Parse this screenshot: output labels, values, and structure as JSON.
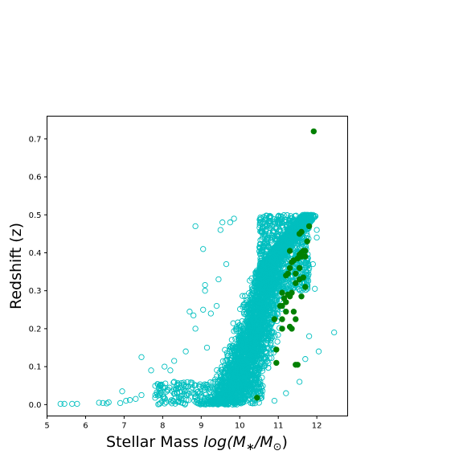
{
  "chart_data": {
    "type": "scatter",
    "xlabel_prefix": "Stellar Mass ",
    "xlabel_math": "log(M",
    "xlabel_sub1": "∗",
    "xlabel_mid": "/M",
    "xlabel_sub2": "⊙",
    "xlabel_suffix": ")",
    "ylabel": "Redshift (z)",
    "xlim": [
      5.0,
      12.8
    ],
    "ylim": [
      -0.03,
      0.76
    ],
    "xticks": [
      5,
      6,
      7,
      8,
      9,
      10,
      11,
      12
    ],
    "yticks": [
      0.0,
      0.1,
      0.2,
      0.3,
      0.4,
      0.5,
      0.6,
      0.7
    ],
    "yticklabels": [
      "0.0",
      "0.1",
      "0.2",
      "0.3",
      "0.4",
      "0.5",
      "0.6",
      "0.7"
    ],
    "grid": false,
    "series": [
      {
        "marker": "open-circle",
        "color": "#00bfbf",
        "points": [
          [
            5.35,
            0.002
          ],
          [
            5.45,
            0.002
          ],
          [
            5.65,
            0.002
          ],
          [
            5.78,
            0.002
          ],
          [
            6.35,
            0.005
          ],
          [
            6.45,
            0.004
          ],
          [
            6.55,
            0.003
          ],
          [
            6.6,
            0.006
          ],
          [
            6.9,
            0.004
          ],
          [
            6.95,
            0.035
          ],
          [
            7.05,
            0.01
          ],
          [
            7.15,
            0.012
          ],
          [
            7.3,
            0.015
          ],
          [
            7.45,
            0.025
          ],
          [
            7.45,
            0.125
          ],
          [
            7.7,
            0.09
          ],
          [
            7.95,
            0.05
          ],
          [
            8.05,
            0.1
          ],
          [
            8.2,
            0.09
          ],
          [
            8.3,
            0.115
          ],
          [
            8.6,
            0.14
          ],
          [
            8.7,
            0.245
          ],
          [
            8.8,
            0.235
          ],
          [
            8.85,
            0.47
          ],
          [
            8.85,
            0.2
          ],
          [
            9.05,
            0.25
          ],
          [
            9.05,
            0.41
          ],
          [
            9.1,
            0.3
          ],
          [
            9.1,
            0.315
          ],
          [
            9.15,
            0.15
          ],
          [
            9.25,
            0.24
          ],
          [
            9.4,
            0.26
          ],
          [
            9.45,
            0.33
          ],
          [
            9.5,
            0.46
          ],
          [
            9.55,
            0.48
          ],
          [
            9.65,
            0.37
          ],
          [
            9.75,
            0.48
          ],
          [
            9.85,
            0.49
          ],
          [
            12.45,
            0.19
          ],
          [
            12.05,
            0.14
          ],
          [
            11.95,
            0.305
          ],
          [
            12.0,
            0.44
          ],
          [
            12.0,
            0.46
          ],
          [
            11.9,
            0.37
          ],
          [
            11.85,
            0.5
          ],
          [
            11.8,
            0.18
          ],
          [
            11.7,
            0.12
          ],
          [
            11.55,
            0.06
          ],
          [
            11.2,
            0.03
          ],
          [
            10.9,
            0.01
          ],
          [
            10.5,
            0.005
          ],
          [
            9.9,
            0.01
          ]
        ],
        "dense_band_note": ""
      },
      {
        "marker": "filled-circle",
        "color": "#008000",
        "points": [
          [
            11.92,
            0.72
          ],
          [
            10.45,
            0.018
          ],
          [
            11.45,
            0.105
          ],
          [
            11.5,
            0.105
          ],
          [
            10.95,
            0.11
          ],
          [
            10.95,
            0.145
          ],
          [
            11.1,
            0.2
          ],
          [
            11.3,
            0.205
          ],
          [
            11.35,
            0.2
          ],
          [
            10.9,
            0.225
          ],
          [
            11.1,
            0.225
          ],
          [
            11.45,
            0.225
          ],
          [
            11.2,
            0.245
          ],
          [
            11.4,
            0.245
          ],
          [
            11.05,
            0.26
          ],
          [
            11.1,
            0.26
          ],
          [
            11.2,
            0.27
          ],
          [
            11.15,
            0.28
          ],
          [
            11.3,
            0.285
          ],
          [
            11.25,
            0.29
          ],
          [
            11.6,
            0.285
          ],
          [
            11.1,
            0.295
          ],
          [
            11.35,
            0.295
          ],
          [
            11.7,
            0.31
          ],
          [
            11.45,
            0.32
          ],
          [
            11.55,
            0.33
          ],
          [
            11.65,
            0.335
          ],
          [
            11.2,
            0.34
          ],
          [
            11.25,
            0.345
          ],
          [
            11.45,
            0.345
          ],
          [
            11.3,
            0.36
          ],
          [
            11.55,
            0.36
          ],
          [
            11.35,
            0.375
          ],
          [
            11.4,
            0.38
          ],
          [
            11.5,
            0.385
          ],
          [
            11.6,
            0.39
          ],
          [
            11.7,
            0.39
          ],
          [
            11.55,
            0.395
          ],
          [
            11.6,
            0.4
          ],
          [
            11.65,
            0.405
          ],
          [
            11.3,
            0.405
          ],
          [
            11.7,
            0.405
          ],
          [
            11.75,
            0.43
          ],
          [
            11.55,
            0.45
          ],
          [
            11.6,
            0.455
          ],
          [
            11.8,
            0.47
          ]
        ]
      }
    ]
  }
}
